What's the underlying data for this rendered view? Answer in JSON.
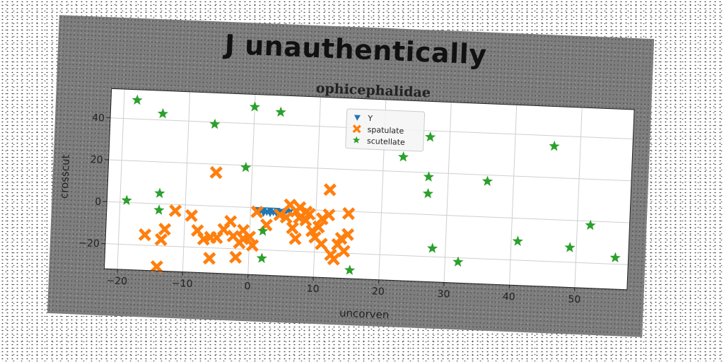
{
  "suptitle": "J unauthentically",
  "chart_data": {
    "type": "scatter",
    "title": "ophicephalidae",
    "xlabel": "uncorven",
    "ylabel": "crosscut",
    "xlim": [
      -22,
      58
    ],
    "ylim": [
      -32,
      54
    ],
    "xticks": [
      -20,
      -10,
      0,
      10,
      20,
      30,
      40,
      50
    ],
    "yticks": [
      -20,
      0,
      20,
      40
    ],
    "xtick_labels": [
      "−20",
      "−10",
      "0",
      "10",
      "20",
      "30",
      "40",
      "50"
    ],
    "ytick_labels": [
      "−20",
      "0",
      "20",
      "40"
    ],
    "grid": true,
    "legend_position": "top-center",
    "series": [
      {
        "name": "Y",
        "marker": "triangle-down",
        "color": "#1f77b4",
        "points": [
          [
            1,
            -1
          ],
          [
            1.5,
            -1.5
          ],
          [
            2,
            -1
          ],
          [
            2.5,
            -2
          ],
          [
            3,
            -1
          ],
          [
            3.5,
            -2
          ],
          [
            4,
            -1
          ],
          [
            4.5,
            -1.5
          ],
          [
            5,
            -2
          ],
          [
            5.5,
            -1
          ],
          [
            6,
            -1.5
          ],
          [
            2,
            -2.5
          ],
          [
            3,
            -2.5
          ],
          [
            4,
            -2.5
          ],
          [
            5,
            -2.5
          ]
        ]
      },
      {
        "name": "spatulate",
        "marker": "x-filled",
        "color": "#ff7f0e",
        "points": [
          [
            -16,
            -15
          ],
          [
            -13.5,
            -17
          ],
          [
            -13,
            -12
          ],
          [
            -11.5,
            -3
          ],
          [
            -9,
            -5
          ],
          [
            -8,
            -12
          ],
          [
            -7,
            -16
          ],
          [
            -6,
            -15
          ],
          [
            -5,
            -15
          ],
          [
            -4,
            -11
          ],
          [
            -2.5,
            -14
          ],
          [
            -1.5,
            -17
          ],
          [
            -1,
            -15
          ],
          [
            0,
            -14
          ],
          [
            0.5,
            -18
          ],
          [
            -1,
            -11
          ],
          [
            -3,
            -7
          ],
          [
            -6,
            -25
          ],
          [
            -2,
            -24
          ],
          [
            -14,
            -30
          ],
          [
            -5.5,
            16
          ],
          [
            1,
            -2
          ],
          [
            2.5,
            -8
          ],
          [
            4.5,
            -3
          ],
          [
            5.5,
            -4
          ],
          [
            6.5,
            -9
          ],
          [
            7,
            -14
          ],
          [
            7.5,
            -4
          ],
          [
            8.5,
            -1
          ],
          [
            9,
            -2
          ],
          [
            9.5,
            -10
          ],
          [
            10,
            -13
          ],
          [
            11,
            -16
          ],
          [
            12,
            -2
          ],
          [
            12.5,
            -21
          ],
          [
            13,
            -23
          ],
          [
            14.5,
            -19
          ],
          [
            15,
            -1
          ],
          [
            15,
            -11
          ],
          [
            14,
            -13
          ],
          [
            6,
            2
          ],
          [
            7,
            -1
          ],
          [
            7.5,
            1
          ],
          [
            8.5,
            -5
          ],
          [
            10.5,
            -8
          ],
          [
            13.5,
            -16
          ],
          [
            12,
            10
          ],
          [
            11,
            -4
          ]
        ]
      },
      {
        "name": "scutellate",
        "marker": "star",
        "color": "#2ca02c",
        "points": [
          [
            -18,
            49
          ],
          [
            -14,
            43
          ],
          [
            -6,
            39
          ],
          [
            0,
            48
          ],
          [
            4,
            46
          ],
          [
            -19,
            1
          ],
          [
            -14,
            5
          ],
          [
            -14,
            -3
          ],
          [
            -1,
            19
          ],
          [
            2,
            -11
          ],
          [
            2,
            -24
          ],
          [
            15.5,
            -28
          ],
          [
            23,
            27
          ],
          [
            27,
            10
          ],
          [
            27,
            18
          ],
          [
            27,
            37
          ],
          [
            28,
            -16
          ],
          [
            32,
            -22
          ],
          [
            36,
            17
          ],
          [
            41,
            -11
          ],
          [
            46,
            35
          ],
          [
            49,
            -13
          ],
          [
            52,
            -2
          ],
          [
            56,
            -17
          ]
        ]
      }
    ]
  }
}
